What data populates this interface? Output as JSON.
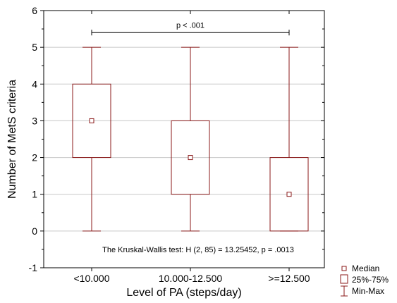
{
  "chart_data": {
    "type": "box",
    "xlabel": "Level of PA (steps/day)",
    "ylabel": "Number of MetS criteria",
    "ylim": [
      -1,
      6
    ],
    "yticks": [
      "-1",
      "0",
      "1",
      "2",
      "3",
      "4",
      "5",
      "6"
    ],
    "categories": [
      "<10.000",
      "10.000-12.500",
      ">=12.500"
    ],
    "boxes": [
      {
        "category": "<10.000",
        "min": 0,
        "q1": 2,
        "median": 3,
        "q3": 4,
        "max": 5
      },
      {
        "category": "10.000-12.500",
        "min": 0,
        "q1": 1,
        "median": 2,
        "q3": 3,
        "max": 5
      },
      {
        "category": ">=12.500",
        "min": 0,
        "q1": 0,
        "median": 1,
        "q3": 2,
        "max": 5
      }
    ],
    "grid": "horizontal",
    "significance": {
      "from": "<10.000",
      "to": ">=12.500",
      "y": 5.4,
      "label": "p < .001"
    },
    "annotation": "The Kruskal-Wallis test: H (2, 85) = 13.25452, p = .0013",
    "legend": {
      "placement": "bottom-right outside",
      "items": [
        "Median",
        "25%-75%",
        "Min-Max"
      ]
    },
    "colors": {
      "box": "#8b1a1a",
      "grid": "#c8c8c8",
      "axis": "#000000"
    }
  }
}
